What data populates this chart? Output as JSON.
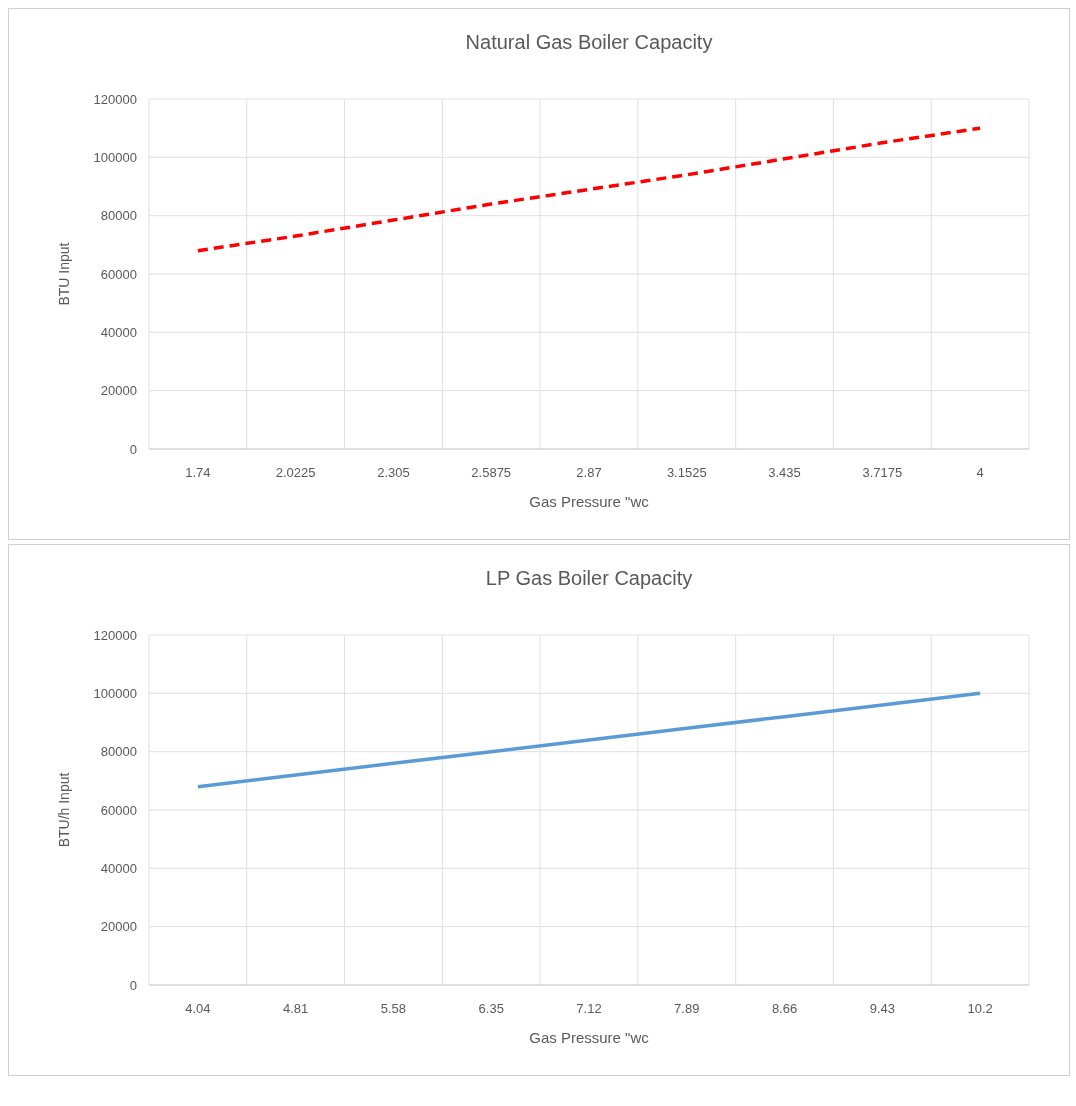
{
  "chart_data": [
    {
      "type": "line",
      "title": "Natural Gas Boiler Capacity",
      "xlabel": "Gas Pressure \"wc",
      "ylabel": "BTU Input",
      "categories": [
        "1.74",
        "2.0225",
        "2.305",
        "2.5875",
        "2.87",
        "3.1525",
        "3.435",
        "3.7175",
        "4"
      ],
      "series": [
        {
          "color": "#ff0000",
          "line_style": "dashed",
          "values": [
            68000,
            73000,
            78500,
            84000,
            89000,
            94000,
            99500,
            105000,
            110000
          ]
        }
      ],
      "ylim": [
        0,
        120000
      ],
      "yticks": [
        0,
        20000,
        40000,
        60000,
        80000,
        100000,
        120000
      ],
      "grid": true,
      "marker": "none"
    },
    {
      "type": "line",
      "title": "LP Gas Boiler Capacity",
      "xlabel": "Gas Pressure \"wc",
      "ylabel": "BTU/h Input",
      "categories": [
        "4.04",
        "4.81",
        "5.58",
        "6.35",
        "7.12",
        "7.89",
        "8.66",
        "9.43",
        "10.2"
      ],
      "series": [
        {
          "color": "#5b9bd5",
          "line_style": "solid",
          "values": [
            68000,
            72000,
            76000,
            80000,
            84000,
            88000,
            92000,
            96000,
            100000
          ]
        }
      ],
      "ylim": [
        0,
        120000
      ],
      "yticks": [
        0,
        20000,
        40000,
        60000,
        80000,
        100000,
        120000
      ],
      "grid": true,
      "marker": "none"
    }
  ]
}
